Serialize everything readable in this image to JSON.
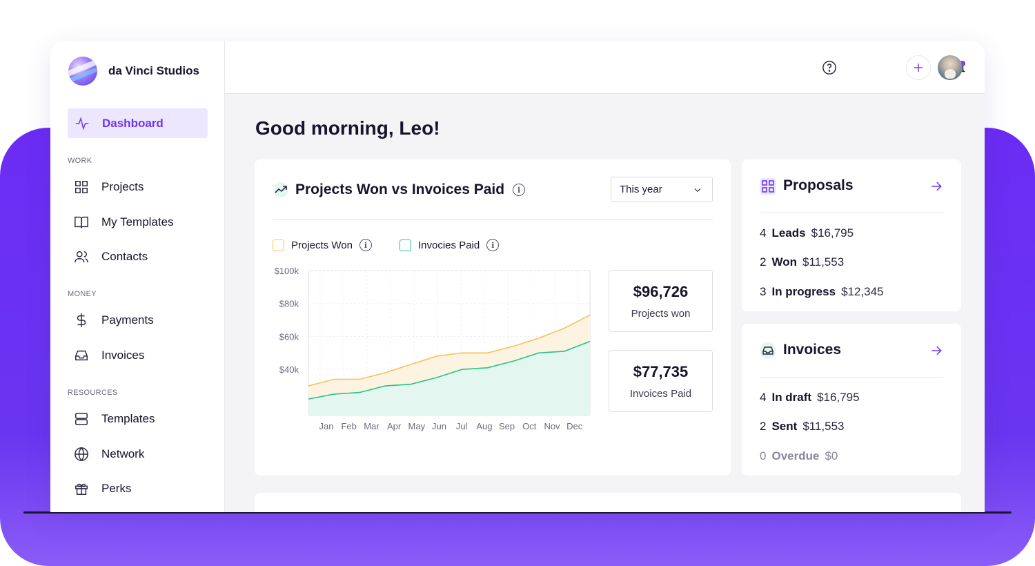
{
  "brand": {
    "name": "da Vinci Studios"
  },
  "sidebar": {
    "active": {
      "label": "Dashboard"
    },
    "sections": [
      {
        "label": "WORK",
        "items": [
          {
            "label": "Projects"
          },
          {
            "label": "My Templates"
          },
          {
            "label": "Contacts"
          }
        ]
      },
      {
        "label": "MONEY",
        "items": [
          {
            "label": "Payments"
          },
          {
            "label": "Invoices"
          }
        ]
      },
      {
        "label": "RESOURCES",
        "items": [
          {
            "label": "Templates"
          },
          {
            "label": "Network"
          },
          {
            "label": "Perks"
          }
        ]
      }
    ]
  },
  "header": {
    "greeting": "Good morning, Leo!"
  },
  "chart_card": {
    "title": "Projects Won vs Invoices Paid",
    "period_select": "This year",
    "stats": [
      {
        "value": "$96,726",
        "label": "Projects won"
      },
      {
        "value": "$77,735",
        "label": "Invoices Paid"
      }
    ]
  },
  "chart_data": {
    "type": "area",
    "categories": [
      "Jan",
      "Feb",
      "Mar",
      "Apr",
      "May",
      "Jun",
      "Jul",
      "Aug",
      "Sep",
      "Oct",
      "Nov",
      "Dec"
    ],
    "series": [
      {
        "name": "Projects Won",
        "color": "#f5c25b",
        "fill": "#fdf3e1",
        "values": [
          30,
          34,
          34,
          38,
          43,
          48,
          50,
          50,
          54,
          59,
          65,
          73
        ]
      },
      {
        "name": "Invocies Paid",
        "color": "#2bc08a",
        "fill": "#e3f7f0",
        "values": [
          22,
          25,
          26,
          30,
          31,
          35,
          40,
          41,
          45,
          50,
          51,
          57
        ]
      }
    ],
    "y_ticks": [
      "$100k",
      "$80k",
      "$60k",
      "$40k"
    ],
    "ylim": [
      12,
      100
    ],
    "grid": true,
    "legend_position": "top-left"
  },
  "proposals": {
    "title": "Proposals",
    "rows": [
      {
        "count": "4",
        "label": "Leads",
        "amount": "$16,795"
      },
      {
        "count": "2",
        "label": "Won",
        "amount": "$11,553"
      },
      {
        "count": "3",
        "label": "In progress",
        "amount": "$12,345"
      }
    ]
  },
  "invoices": {
    "title": "Invoices",
    "rows": [
      {
        "count": "4",
        "label": "In draft",
        "amount": "$16,795"
      },
      {
        "count": "2",
        "label": "Sent",
        "amount": "$11,553"
      },
      {
        "count": "0",
        "label": "Overdue",
        "amount": "$0"
      }
    ]
  },
  "colors": {
    "accent": "#6a35f0",
    "background_purple": "#6b2cf5",
    "projects_won": "#f5c25b",
    "invoices_paid": "#2bc08a"
  }
}
